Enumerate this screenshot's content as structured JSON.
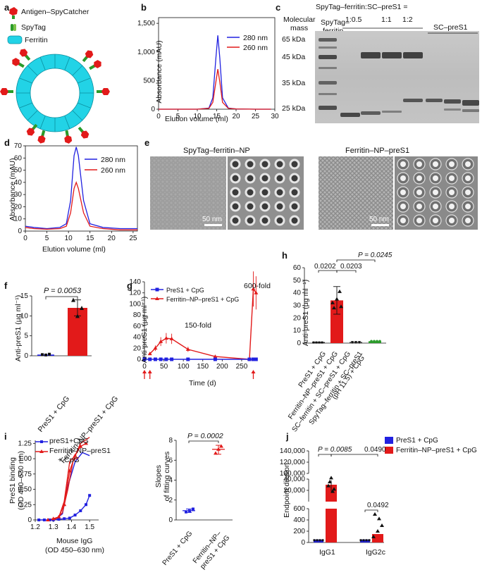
{
  "panel_labels": {
    "a": "a",
    "b": "b",
    "c": "c",
    "d": "d",
    "e": "e",
    "f": "f",
    "g": "g",
    "h": "h",
    "i": "i",
    "j": "j"
  },
  "legend_a": {
    "antigen": "Antigen–SpyCatcher",
    "spytag": "SpyTag",
    "ferritin": "Ferritin"
  },
  "colors": {
    "blue": "#2121e0",
    "red": "#e21a1a",
    "ferritin": "#22d3e6",
    "gel_bg": "#c4c4c4",
    "band": "#404040"
  },
  "panel_b": {
    "xlabel": "Elution volume (ml)",
    "ylabel": "Absorbance (mAU)",
    "xticks": [
      "0",
      "5",
      "10",
      "15",
      "20",
      "25",
      "30"
    ],
    "yticks": [
      "0",
      "500",
      "1,000",
      "1,500"
    ],
    "legend": [
      "280 nm",
      "260 nm"
    ]
  },
  "panel_c": {
    "header": "SpyTag–ferritin:SC–preS1 =",
    "ratios": [
      "1:0.5",
      "1:1",
      "1:2"
    ],
    "lane_label_1": "SpyTag–",
    "lane_label_2": "ferritin",
    "mm_label_1": "Molecular",
    "mm_label_2": "mass",
    "sc_label": "SC–preS1",
    "markers": [
      "65 kDa",
      "45 kDa",
      "35 kDa",
      "25 kDa"
    ]
  },
  "panel_d": {
    "xlabel": "Elution volume (ml)",
    "ylabel": "Absorbance (mAU)",
    "xticks": [
      "0",
      "5",
      "10",
      "15",
      "20",
      "25"
    ],
    "yticks": [
      "0",
      "10",
      "20",
      "30",
      "40",
      "50",
      "60",
      "70"
    ],
    "legend": [
      "280 nm",
      "260 nm"
    ]
  },
  "panel_e": {
    "title_left": "SpyTag–ferritin–NP",
    "title_right": "Ferritin–NP–preS1",
    "scale_left": "50 nm",
    "scale_right": "50 nm"
  },
  "panel_f": {
    "pval": "P = 0.0053",
    "ylabel": "Anti-preS1 (µg ml⁻¹)",
    "yticks": [
      "0",
      "5",
      "10",
      "15"
    ],
    "xcats": [
      "PreS1 + CpG",
      "Ferritin–NP–preS1 + CpG"
    ]
  },
  "panel_g": {
    "ylabel": "Anti-preS1 (µg ml⁻¹)",
    "xlabel": "Time (d)",
    "yticks": [
      "0",
      "20",
      "40",
      "60",
      "80",
      "100",
      "120",
      "140"
    ],
    "xticks": [
      "0",
      "50",
      "100",
      "150",
      "200",
      "250"
    ],
    "legend": [
      "PreS1 + CpG",
      "Ferritin–NP–preS1 + CpG"
    ],
    "annot_150": "150-fold",
    "annot_600": "600-fold"
  },
  "panel_h": {
    "ylabel": "Anti-preS1 (µg ml⁻¹)",
    "yticks": [
      "0",
      "10",
      "20",
      "30",
      "40",
      "50",
      "60"
    ],
    "pvals": [
      "0.0202",
      "0.0203",
      "P = 0.0245"
    ],
    "xcats": [
      "PreS1 + CpG",
      "Ferritin–NP–preS1 + CpG",
      "SC–ferritin + SC–preS1 + CpG",
      "SpyTag–ferritin + SC–preS1",
      "(pH 11.5) + CpG"
    ]
  },
  "panel_i_left": {
    "ylabel_1": "PreS1 binding",
    "ylabel_2": "(OD 450–630 nm)",
    "xlabel_1": "Mouse IgG",
    "xlabel_2": "(OD 450–630 nm)",
    "xticks": [
      "1.2",
      "1.3",
      "1.4",
      "1.5"
    ],
    "yticks": [
      "0",
      "0.25",
      "0.50",
      "0.75",
      "1.00",
      "1.25"
    ],
    "legend": [
      "preS1+CpG",
      "Ferritin–NP–preS1",
      "+ CpG"
    ]
  },
  "panel_i_right": {
    "pval": "P = 0.0002",
    "ylabel_1": "Slopes",
    "ylabel_2": "of fitting curves",
    "yticks": [
      "0",
      "2",
      "4",
      "6",
      "8"
    ],
    "xcats": [
      "PreS1 + CpG",
      "Ferritin–NP–",
      "preS1 + CpG"
    ]
  },
  "panel_j": {
    "ylabel": "Endpoint dilution",
    "yticks_top": [
      "100,000",
      "120,000",
      "140,000"
    ],
    "yticks_mid": [
      "20,000",
      "40,000"
    ],
    "yticks_bot": [
      "0",
      "200",
      "400",
      "600"
    ],
    "xcats": [
      "IgG1",
      "IgG2c"
    ],
    "pvals": [
      "P = 0.0085",
      "0.0490",
      "0.0492"
    ],
    "legend": [
      "PreS1 + CpG",
      "Ferritin–NP–preS1 + CpG"
    ]
  },
  "chart_data": [
    {
      "panel": "b",
      "type": "line",
      "xlabel": "Elution volume (ml)",
      "ylabel": "Absorbance (mAU)",
      "xlim": [
        0,
        30
      ],
      "ylim": [
        0,
        1600
      ],
      "series": [
        {
          "name": "280 nm",
          "x": [
            0,
            5,
            10,
            13,
            14,
            14.8,
            15.3,
            15.8,
            16.5,
            18,
            20,
            25,
            29
          ],
          "y": [
            0,
            0,
            0,
            20,
            200,
            900,
            1290,
            900,
            200,
            20,
            5,
            0,
            0
          ]
        },
        {
          "name": "260 nm",
          "x": [
            0,
            5,
            10,
            13,
            14,
            14.8,
            15.3,
            15.8,
            16.5,
            18,
            20,
            25,
            29
          ],
          "y": [
            0,
            0,
            0,
            15,
            120,
            480,
            700,
            480,
            120,
            15,
            5,
            0,
            0
          ]
        }
      ]
    },
    {
      "panel": "d",
      "type": "line",
      "xlabel": "Elution volume (ml)",
      "ylabel": "Absorbance (mAU)",
      "xlim": [
        0,
        26
      ],
      "ylim": [
        0,
        70
      ],
      "series": [
        {
          "name": "280 nm",
          "x": [
            0,
            2,
            5,
            8,
            9.5,
            10.5,
            11.3,
            11.8,
            12.3,
            13.5,
            15,
            18,
            22,
            26
          ],
          "y": [
            4,
            3,
            2,
            3,
            6,
            25,
            62,
            69,
            62,
            25,
            6,
            3,
            2,
            2
          ]
        },
        {
          "name": "260 nm",
          "x": [
            0,
            2,
            5,
            8,
            9.5,
            10.5,
            11.3,
            11.8,
            12.3,
            13.5,
            15,
            18,
            22,
            26
          ],
          "y": [
            3,
            2,
            1.5,
            2,
            4,
            15,
            35,
            40,
            35,
            15,
            4,
            2,
            1,
            1
          ]
        }
      ]
    },
    {
      "panel": "f",
      "type": "bar",
      "categories": [
        "PreS1 + CpG",
        "Ferritin–NP–preS1 + CpG"
      ],
      "values": [
        0.3,
        12
      ],
      "ylim": [
        0,
        15
      ],
      "points": [
        [
          0.3,
          0.2,
          0.4
        ],
        [
          14,
          10,
          12
        ]
      ]
    },
    {
      "panel": "g",
      "type": "line",
      "xlabel": "Time (d)",
      "ylabel": "Anti-preS1 (µg ml⁻¹)",
      "xlim": [
        0,
        290
      ],
      "ylim": [
        0,
        140
      ],
      "series": [
        {
          "name": "PreS1 + CpG",
          "x": [
            0,
            14,
            28,
            42,
            56,
            70,
            112,
            182,
            270,
            280,
            287
          ],
          "y": [
            0,
            0,
            0,
            0,
            0,
            0,
            0,
            0,
            0,
            0,
            0
          ]
        },
        {
          "name": "Ferritin–NP–preS1 + CpG",
          "x": [
            14,
            28,
            42,
            56,
            70,
            112,
            182,
            270,
            280,
            287
          ],
          "y": [
            10,
            20,
            32,
            38,
            37,
            18,
            5,
            0,
            127,
            120
          ]
        }
      ]
    },
    {
      "panel": "h",
      "type": "bar",
      "categories": [
        "PreS1 + CpG",
        "Ferritin–NP–preS1 + CpG",
        "SC–ferritin + SC–preS1 + CpG",
        "SpyTag–ferritin + SC–preS1 (pH 11.5) + CpG"
      ],
      "values": [
        0.3,
        34,
        0.5,
        1.5
      ],
      "ylim": [
        0,
        60
      ]
    },
    {
      "panel": "i-left",
      "type": "scatter",
      "xlabel": "Mouse IgG (OD 450–630 nm)",
      "ylabel": "PreS1 binding (OD 450–630 nm)",
      "xlim": [
        1.2,
        1.55
      ],
      "ylim": [
        0,
        1.3
      ],
      "series": [
        {
          "name": "preS1+CpG",
          "x": [
            1.22,
            1.25,
            1.28,
            1.3,
            1.33,
            1.36,
            1.39,
            1.42,
            1.45,
            1.48,
            1.5
          ],
          "y": [
            0,
            0,
            0,
            0,
            0.01,
            0.02,
            0.03,
            0.08,
            0.15,
            0.25,
            0.4
          ]
        },
        {
          "name": "Ferritin–NP–preS1 + CpG",
          "x": [
            1.27,
            1.3,
            1.33,
            1.36,
            1.39,
            1.42,
            1.45,
            1.48
          ],
          "y": [
            0,
            0.02,
            0.05,
            0.25,
            0.8,
            1.05,
            1.2,
            1.25
          ]
        }
      ]
    },
    {
      "panel": "i-right",
      "type": "scatter",
      "ylabel": "Slopes of fitting curves",
      "ylim": [
        0,
        8
      ],
      "categories": [
        "PreS1 + CpG",
        "Ferritin–NP–preS1 + CpG"
      ],
      "values": [
        [
          0.8,
          0.9,
          1.1
        ],
        [
          6.7,
          7.1,
          7.4
        ]
      ]
    },
    {
      "panel": "j",
      "type": "bar",
      "categories": [
        "IgG1",
        "IgG2c"
      ],
      "ylabel": "Endpoint dilution",
      "series": [
        {
          "name": "PreS1 + CpG",
          "values": [
            50,
            50
          ]
        },
        {
          "name": "Ferritin–NP–preS1 + CpG",
          "values": [
            30000,
            150
          ]
        }
      ]
    }
  ]
}
